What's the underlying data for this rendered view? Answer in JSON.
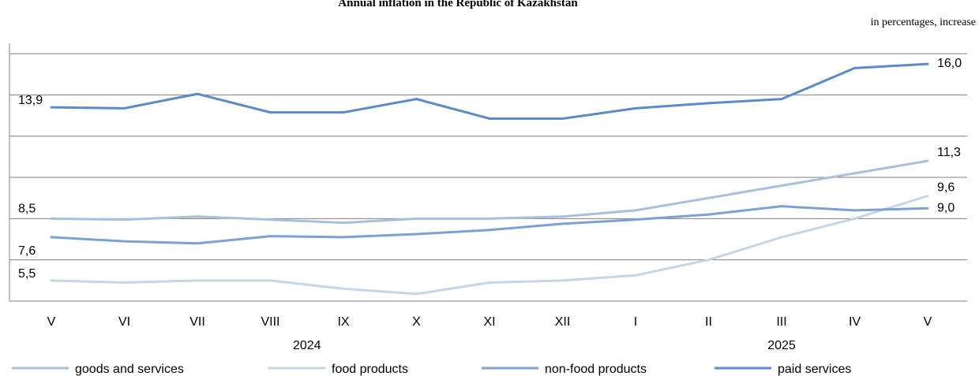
{
  "chart_data": {
    "type": "line",
    "title": "Annual inflation in the Republic of Kazakhstan",
    "unit_note": "in percentages, increase",
    "categories": [
      "V",
      "VI",
      "VII",
      "VIII",
      "IX",
      "X",
      "XI",
      "XII",
      "I",
      "II",
      "III",
      "IV",
      "V"
    ],
    "year_labels": [
      {
        "label": "2024",
        "from": 0,
        "to": 7
      },
      {
        "label": "2025",
        "from": 8,
        "to": 12
      }
    ],
    "ylim": [
      4.5,
      17.0
    ],
    "gridlines": [
      4.5,
      6.5,
      8.5,
      10.5,
      12.5,
      14.5,
      16.5
    ],
    "legend_position": "bottom",
    "series": [
      {
        "name": "goods and services",
        "color": "#a9bfde",
        "values": [
          8.5,
          8.45,
          8.6,
          8.45,
          8.3,
          8.5,
          8.5,
          8.6,
          8.9,
          9.5,
          10.1,
          10.7,
          11.3
        ],
        "labels": [
          {
            "index": 0,
            "text": "8,5"
          },
          {
            "index": 12,
            "text": "11,3"
          }
        ]
      },
      {
        "name": "food products",
        "color": "#c5d6ea",
        "values": [
          5.5,
          5.4,
          5.5,
          5.5,
          5.1,
          4.85,
          5.4,
          5.5,
          5.75,
          6.5,
          7.6,
          8.5,
          9.6
        ],
        "labels": [
          {
            "index": 0,
            "text": "5,5"
          },
          {
            "index": 12,
            "text": "9,6"
          }
        ]
      },
      {
        "name": "non-food products",
        "color": "#7ca1d2",
        "values": [
          7.6,
          7.4,
          7.3,
          7.65,
          7.6,
          7.75,
          7.95,
          8.25,
          8.45,
          8.7,
          9.1,
          8.9,
          9.0
        ],
        "labels": [
          {
            "index": 0,
            "text": "7,6"
          },
          {
            "index": 12,
            "text": "9,0"
          }
        ]
      },
      {
        "name": "paid services",
        "color": "#5b8bc9",
        "values": [
          13.9,
          13.85,
          14.55,
          13.65,
          13.65,
          14.3,
          13.35,
          13.35,
          13.85,
          14.1,
          14.3,
          15.8,
          16.0
        ],
        "labels": [
          {
            "index": 0,
            "text": "13,9"
          },
          {
            "index": 12,
            "text": "16,0"
          }
        ]
      }
    ]
  }
}
